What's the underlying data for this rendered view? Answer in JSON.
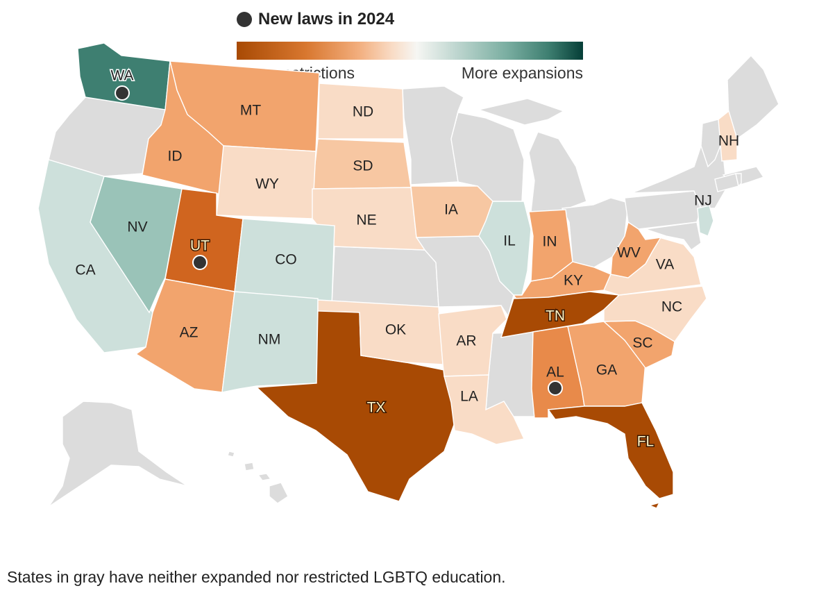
{
  "legend": {
    "title": "New laws in 2024",
    "left_label": "More restrictions",
    "right_label": "More expansions"
  },
  "footnote": "States in gray have neither expanded nor restricted LGBTQ education.",
  "colors": {
    "gray": "#dcdcdc",
    "restrict_strong": "#a84a04",
    "restrict_mid": "#d0651f",
    "restrict_med_light": "#e88a4a",
    "restrict_light": "#f2a46d",
    "restrict_lighter": "#f7c7a2",
    "restrict_lightest": "#f9dcc6",
    "expand_light": "#cde0db",
    "expand_mid": "#9ac3b8",
    "expand_strong": "#3e7f71",
    "marker": "#333333"
  },
  "states": [
    {
      "abbr": "WA",
      "category": "expand_strong",
      "new_law_2024": true
    },
    {
      "abbr": "UT",
      "category": "restrict_mid",
      "new_law_2024": true
    },
    {
      "abbr": "AL",
      "category": "restrict_med_light",
      "new_law_2024": true
    },
    {
      "abbr": "TX",
      "category": "restrict_strong",
      "new_law_2024": false
    },
    {
      "abbr": "FL",
      "category": "restrict_strong",
      "new_law_2024": false
    },
    {
      "abbr": "TN",
      "category": "restrict_strong",
      "new_law_2024": false
    },
    {
      "abbr": "MT",
      "category": "restrict_light",
      "new_law_2024": false
    },
    {
      "abbr": "ID",
      "category": "restrict_light",
      "new_law_2024": false
    },
    {
      "abbr": "AZ",
      "category": "restrict_light",
      "new_law_2024": false
    },
    {
      "abbr": "GA",
      "category": "restrict_light",
      "new_law_2024": false
    },
    {
      "abbr": "SC",
      "category": "restrict_light",
      "new_law_2024": false
    },
    {
      "abbr": "KY",
      "category": "restrict_light",
      "new_law_2024": false
    },
    {
      "abbr": "IN",
      "category": "restrict_light",
      "new_law_2024": false
    },
    {
      "abbr": "WV",
      "category": "restrict_light",
      "new_law_2024": false
    },
    {
      "abbr": "IA",
      "category": "restrict_lighter",
      "new_law_2024": false
    },
    {
      "abbr": "SD",
      "category": "restrict_lighter",
      "new_law_2024": false
    },
    {
      "abbr": "ND",
      "category": "restrict_lightest",
      "new_law_2024": false
    },
    {
      "abbr": "WY",
      "category": "restrict_lightest",
      "new_law_2024": false
    },
    {
      "abbr": "NE",
      "category": "restrict_lightest",
      "new_law_2024": false
    },
    {
      "abbr": "OK",
      "category": "restrict_lightest",
      "new_law_2024": false
    },
    {
      "abbr": "AR",
      "category": "restrict_lightest",
      "new_law_2024": false
    },
    {
      "abbr": "LA",
      "category": "restrict_lightest",
      "new_law_2024": false
    },
    {
      "abbr": "VA",
      "category": "restrict_lightest",
      "new_law_2024": false
    },
    {
      "abbr": "NC",
      "category": "restrict_lightest",
      "new_law_2024": false
    },
    {
      "abbr": "NH",
      "category": "restrict_lightest",
      "new_law_2024": false
    },
    {
      "abbr": "CA",
      "category": "expand_light",
      "new_law_2024": false
    },
    {
      "abbr": "CO",
      "category": "expand_light",
      "new_law_2024": false
    },
    {
      "abbr": "NM",
      "category": "expand_light",
      "new_law_2024": false
    },
    {
      "abbr": "IL",
      "category": "expand_light",
      "new_law_2024": false
    },
    {
      "abbr": "NJ",
      "category": "expand_light",
      "new_law_2024": false
    },
    {
      "abbr": "NV",
      "category": "expand_mid",
      "new_law_2024": false
    }
  ]
}
